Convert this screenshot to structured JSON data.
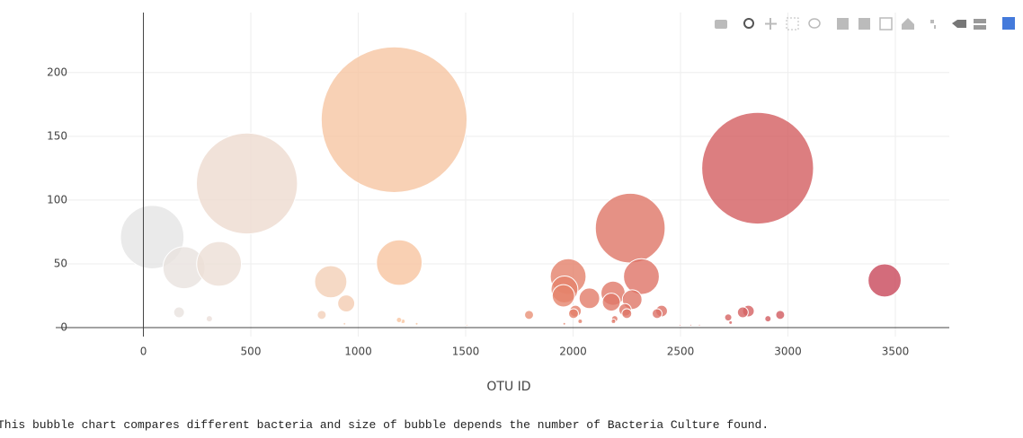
{
  "chart_data": {
    "type": "bubble",
    "xlabel": "OTU ID",
    "xlim": [
      -408,
      3751
    ],
    "ylim": [
      -7,
      247
    ],
    "xticks": [
      0,
      500,
      1000,
      1500,
      2000,
      2500,
      3000,
      3500
    ],
    "yticks": [
      0,
      50,
      100,
      150,
      200
    ],
    "grid": true,
    "colorscale": [
      [
        0,
        "#e5e5e5"
      ],
      [
        0.15,
        "#f0d9cd"
      ],
      [
        0.35,
        "#f7c39d"
      ],
      [
        0.57,
        "#e4806a"
      ],
      [
        1,
        "#c8475a"
      ]
    ],
    "series": [
      {
        "name": "Bacteria",
        "x": [
          41,
          189,
          352,
          482,
          1167,
          872,
          944,
          1191,
          166,
          307,
          830,
          1795,
          1977,
          1960,
          1955,
          2076,
          2011,
          2002,
          2186,
          2178,
          2266,
          2318,
          2275,
          2242,
          2250,
          2412,
          2391,
          2859,
          2816,
          2790,
          2722,
          2733,
          2907,
          2964,
          3450,
          1208,
          1190,
          2033,
          2194,
          2188,
          936,
          1272,
          1505,
          1959,
          2498,
          2548,
          2588
        ],
        "values": [
          71,
          47,
          50,
          113,
          163,
          36,
          19,
          51,
          12,
          7,
          10,
          10,
          40,
          30,
          25,
          23,
          13,
          11,
          27,
          20,
          78,
          40,
          22,
          14,
          11,
          13,
          11,
          125,
          13,
          12,
          8,
          4,
          7,
          10,
          37,
          5,
          6,
          5,
          7,
          5,
          3,
          3,
          2,
          3,
          2,
          2,
          2
        ]
      }
    ]
  },
  "caption": "This bubble chart compares different bacteria and size of bubble depends the number of Bacteria Culture found."
}
